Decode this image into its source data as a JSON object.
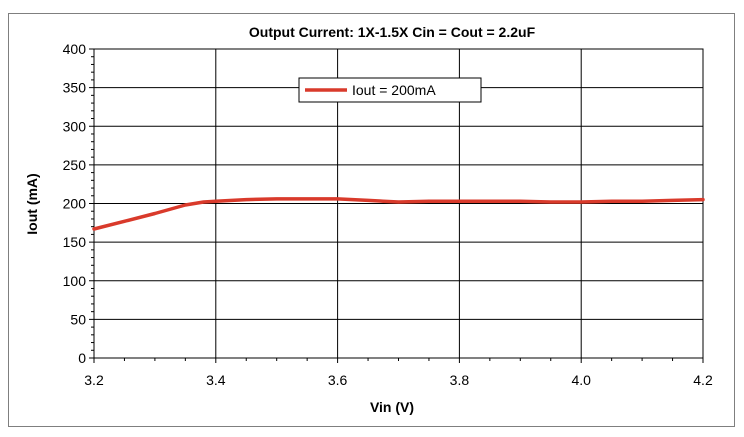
{
  "chart_data": {
    "type": "line",
    "title": "Output Current:  1X-1.5X Cin = Cout = 2.2uF",
    "xlabel": "Vin (V)",
    "ylabel": "Iout (mA)",
    "xlim": [
      3.2,
      4.2
    ],
    "ylim": [
      0,
      400
    ],
    "x_ticks": [
      "3.2",
      "3.4",
      "3.6",
      "3.8",
      "4.0",
      "4.2"
    ],
    "y_ticks": [
      "0",
      "50",
      "100",
      "150",
      "200",
      "250",
      "300",
      "350",
      "400"
    ],
    "grid": true,
    "legend_position": "top-center",
    "series": [
      {
        "name": "Iout = 200mA",
        "color": "#d93a2b",
        "x": [
          3.2,
          3.25,
          3.3,
          3.35,
          3.38,
          3.4,
          3.45,
          3.5,
          3.55,
          3.6,
          3.65,
          3.7,
          3.75,
          3.8,
          3.85,
          3.9,
          3.95,
          4.0,
          4.05,
          4.1,
          4.15,
          4.2
        ],
        "y": [
          167,
          177,
          187,
          198,
          202,
          203,
          205,
          206,
          206,
          206,
          204,
          202,
          203,
          203,
          203,
          203,
          202,
          202,
          203,
          203,
          204,
          205
        ]
      }
    ]
  }
}
